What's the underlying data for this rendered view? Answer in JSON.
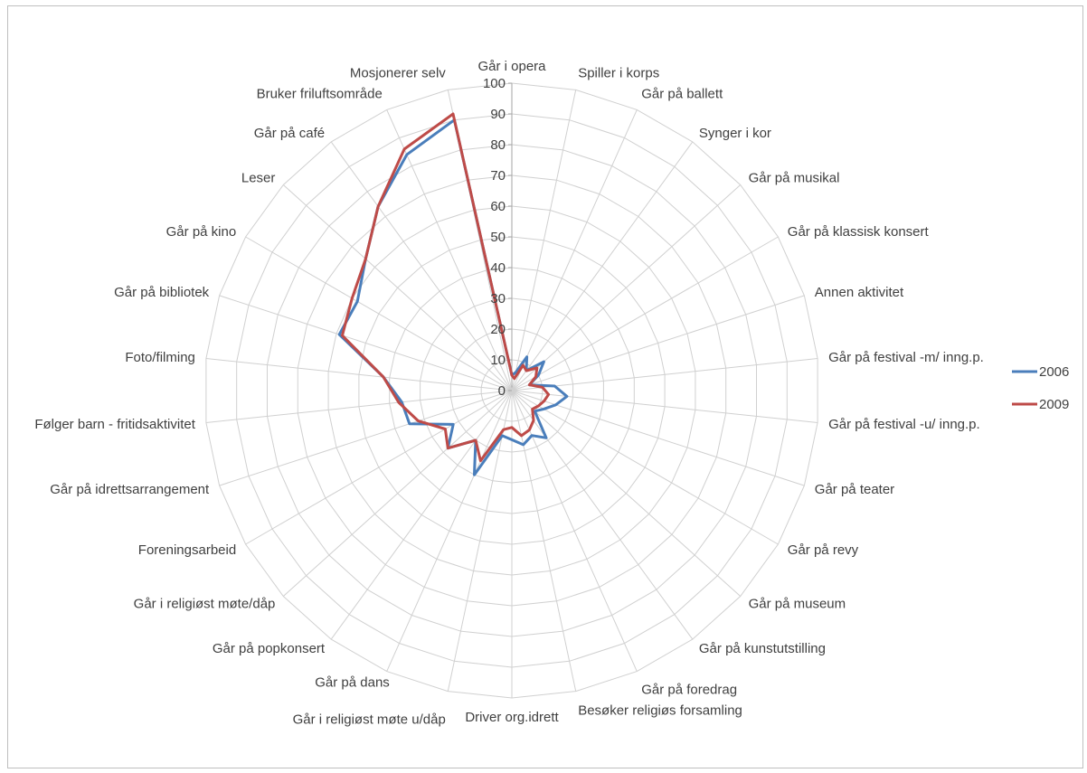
{
  "chart_data": {
    "type": "radar",
    "categories": [
      "Går i opera",
      "Spiller i korps",
      "Går på ballett",
      "Synger i kor",
      "Går på musikal",
      "Går på klassisk konsert",
      "Annen aktivitet",
      "Går på festival -m/ inng.p.",
      "Går på festival -u/ inng.p.",
      "Går på teater",
      "Går på revy",
      "Går på museum",
      "Går på kunstutstilling",
      "Går på foredrag",
      "Besøker religiøs forsamling",
      "Driver org.idrett",
      "Går i religiøst møte u/dåp",
      "Går på dans",
      "Går på popkonsert",
      "Går i religiøst møte/dåp",
      "Foreningsarbeid",
      "Går på idrettsarrangement",
      "Følger barn - fritidsaktivitet",
      "Foto/filming",
      "Går på bibliotek",
      "Går på kino",
      "Leser",
      "Går på café",
      "Bruker friluftsområde",
      "Mosjonerer selv"
    ],
    "series": [
      {
        "name": "2006",
        "color": "#4a7ebb",
        "values": [
          5,
          6,
          12,
          8,
          14,
          10,
          6,
          14,
          18,
          15,
          12,
          10,
          19,
          16,
          18,
          16,
          15,
          30,
          20,
          28,
          22,
          35,
          36,
          42,
          59,
          58,
          64,
          74,
          84,
          90
        ]
      },
      {
        "name": "2009",
        "color": "#be4b48",
        "values": [
          5,
          4,
          9,
          8,
          11,
          9,
          6,
          10,
          12,
          11,
          10,
          9,
          12,
          14,
          15,
          12,
          13,
          25,
          20,
          28,
          25,
          32,
          37,
          42,
          58,
          60,
          64,
          74,
          86,
          92
        ]
      }
    ],
    "rmin": 0,
    "rmax": 100,
    "tick_step": 10,
    "ticks": [
      "0",
      "10",
      "20",
      "30",
      "40",
      "50",
      "60",
      "70",
      "80",
      "90",
      "100"
    ],
    "grid": true,
    "legend_position": "right"
  }
}
